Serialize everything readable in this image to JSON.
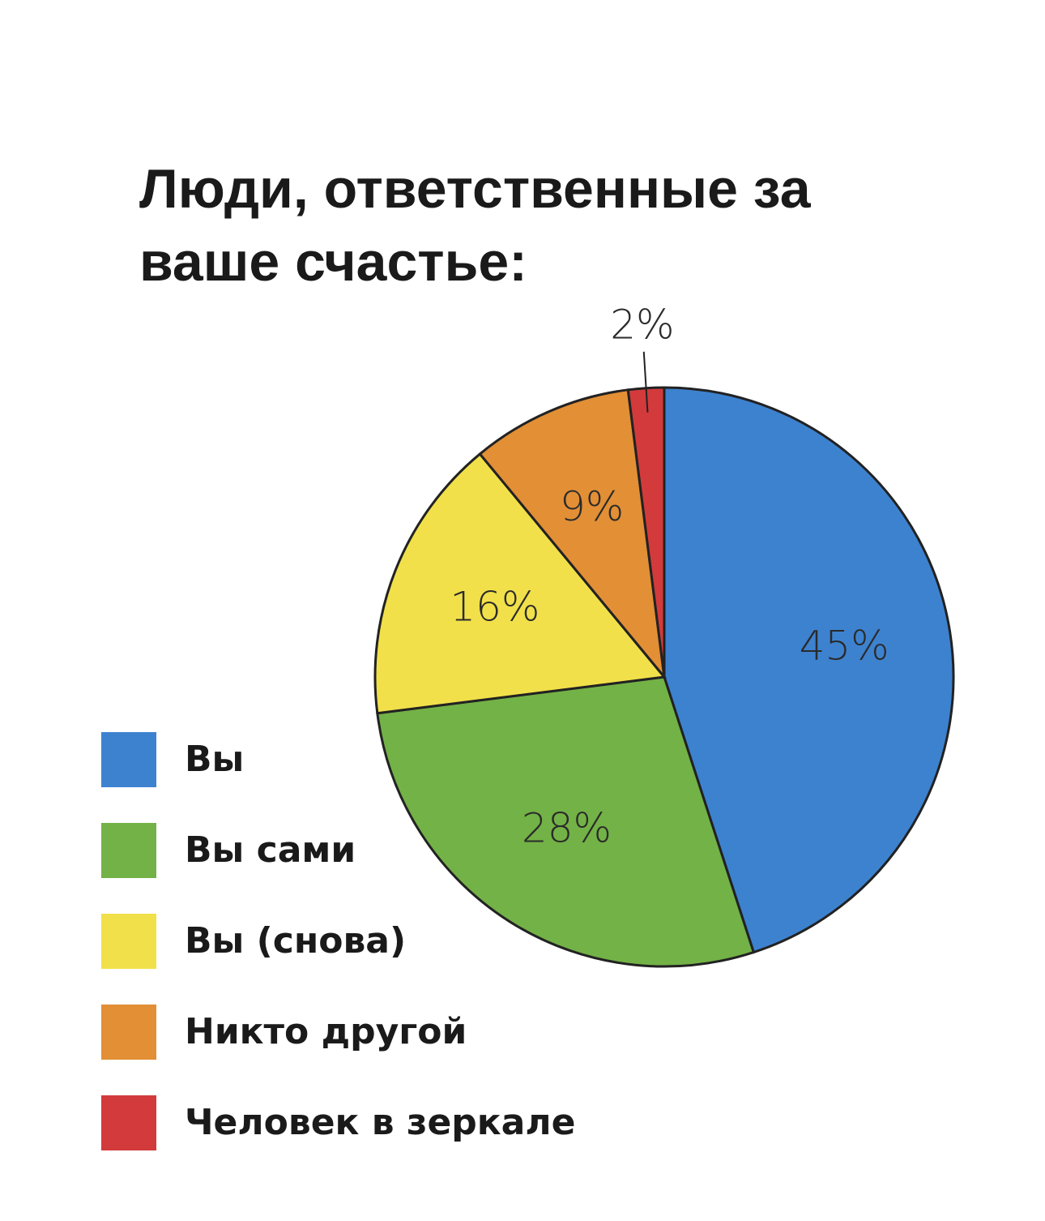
{
  "chart_data": {
    "type": "pie",
    "title": "Люди, ответственные за ваше счастье:",
    "categories": [
      "Вы",
      "Вы сами",
      "Вы (снова)",
      "Никто другой",
      "Человек в зеркале"
    ],
    "values": [
      45,
      28,
      16,
      9,
      2
    ],
    "value_labels": [
      "45%",
      "28%",
      "16%",
      "9%",
      "2%"
    ],
    "colors": [
      "#3d82cf",
      "#73b246",
      "#f1e04a",
      "#e28f35",
      "#d33a3c"
    ]
  }
}
